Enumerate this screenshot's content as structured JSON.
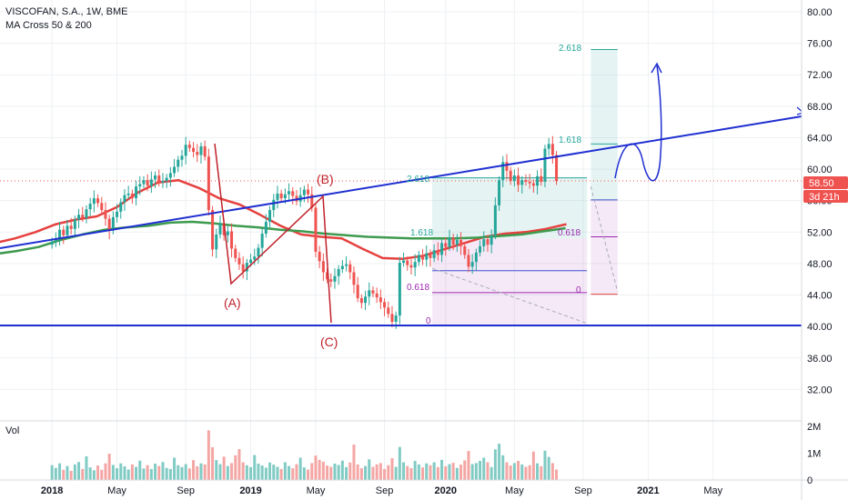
{
  "header": {
    "title": "VISCOFAN, S.A., 1W, BME",
    "indicator": "MA Cross 50 & 200"
  },
  "volume_label": "Vol",
  "colors": {
    "up": "#26a69a",
    "down": "#ef5350",
    "ma50": "#e5413f",
    "ma200": "#3d9a4e",
    "trendline": "#1f2fd1",
    "price_badge": "#ef5350"
  },
  "price_badge": {
    "price": "58.50",
    "countdown": "3d 21h"
  },
  "fib_labels": {
    "a_2618": "2.618",
    "a_1618": "1.618",
    "a_0618": "0.618",
    "a_0": "0",
    "b_2618": "2.618",
    "b_1618": "1.618",
    "b_0618": "0.618",
    "b_0": "0"
  },
  "wave_labels": {
    "a": "(A)",
    "b": "(B)",
    "c": "(C)"
  },
  "chart_data": {
    "type": "candlestick",
    "title": "VISCOFAN, S.A., 1W, BME",
    "price_axis": {
      "range": [
        28,
        81.5
      ],
      "ticks": [
        "32.00",
        "36.00",
        "40.00",
        "44.00",
        "48.00",
        "52.00",
        "56.00",
        "60.00",
        "64.00",
        "68.00",
        "72.00",
        "76.00",
        "80.00"
      ]
    },
    "volume_axis": {
      "range": [
        0,
        2.2
      ],
      "ticks": [
        "0",
        "1M",
        "2M"
      ]
    },
    "time_axis": {
      "labels": [
        "2018",
        "May",
        "Sep",
        "2019",
        "May",
        "Sep",
        "2020",
        "May",
        "Sep",
        "2021",
        "May"
      ],
      "label_weeks": [
        0,
        17,
        35,
        52,
        69,
        87,
        103,
        121,
        139,
        156,
        173
      ]
    },
    "series": [
      {
        "name": "Price",
        "close": [
          50.8,
          51.2,
          52.3,
          51.6,
          52.8,
          52.4,
          53.6,
          54.2,
          53.8,
          54.9,
          55.6,
          56.3,
          55.7,
          54.8,
          53.7,
          52.2,
          53.9,
          54.6,
          55.8,
          56.7,
          56.9,
          56.3,
          57.8,
          58.1,
          58.6,
          57.9,
          58.7,
          59.2,
          58.3,
          58.5,
          58.9,
          59.5,
          60.3,
          61.2,
          61.7,
          63.1,
          62.7,
          62.2,
          61.8,
          62.9,
          61.6,
          54.8,
          49.8,
          51.7,
          53.1,
          51.6,
          52.1,
          49.9,
          48.7,
          47.9,
          47.0,
          48.1,
          48.5,
          48.9,
          50.0,
          51.8,
          53.3,
          54.8,
          56.1,
          56.9,
          56.3,
          56.8,
          57.2,
          56.6,
          55.9,
          56.7,
          57.4,
          56.8,
          55.1,
          49.5,
          48.3,
          46.9,
          46.0,
          45.7,
          46.4,
          47.3,
          47.7,
          47.9,
          46.9,
          45.3,
          43.6,
          43.0,
          43.8,
          44.6,
          44.2,
          43.7,
          43.1,
          42.4,
          41.6,
          40.6,
          41.4,
          48.1,
          48.4,
          47.8,
          47.5,
          48.2,
          49.1,
          48.5,
          49.3,
          48.7,
          49.7,
          49.1,
          50.6,
          50.1,
          51.3,
          50.4,
          51.0,
          50.2,
          49.1,
          47.6,
          48.2,
          49.4,
          50.2,
          51.1,
          50.4,
          51.6,
          55.4,
          58.6,
          60.9,
          59.8,
          58.5,
          59.2,
          58.0,
          58.6,
          58.4,
          58.2,
          57.9,
          59.1,
          58.4,
          62.6,
          63.2,
          61.8,
          58.5
        ],
        "volume_m": [
          0.55,
          0.45,
          0.62,
          0.38,
          0.52,
          0.34,
          0.58,
          0.67,
          0.41,
          0.88,
          0.47,
          0.36,
          0.54,
          0.38,
          0.62,
          0.98,
          0.56,
          0.44,
          0.62,
          0.51,
          0.39,
          0.58,
          0.49,
          0.72,
          0.43,
          0.55,
          0.41,
          0.61,
          0.52,
          0.67,
          0.45,
          0.41,
          0.83,
          0.55,
          0.48,
          0.59,
          0.43,
          0.74,
          0.51,
          0.62,
          0.58,
          1.85,
          1.22,
          0.74,
          0.59,
          0.87,
          0.52,
          0.63,
          0.92,
          1.15,
          0.66,
          0.55,
          0.48,
          0.93,
          0.61,
          0.54,
          0.46,
          0.65,
          0.57,
          0.49,
          0.41,
          0.66,
          0.52,
          0.44,
          0.59,
          0.83,
          0.47,
          0.39,
          0.63,
          0.91,
          0.75,
          0.68,
          0.54,
          0.49,
          0.61,
          0.56,
          0.72,
          0.48,
          0.65,
          1.32,
          0.58,
          0.44,
          0.52,
          0.77,
          0.49,
          0.58,
          0.63,
          0.41,
          0.55,
          0.81,
          0.49,
          1.23,
          0.66,
          0.52,
          0.44,
          0.71,
          0.58,
          0.47,
          0.62,
          0.55,
          0.66,
          0.48,
          0.75,
          0.51,
          0.59,
          0.64,
          0.45,
          0.57,
          0.73,
          1.08,
          0.59,
          0.63,
          0.71,
          0.83,
          0.66,
          0.48,
          1.14,
          1.35,
          0.92,
          0.66,
          0.54,
          0.63,
          0.71,
          0.58,
          0.49,
          0.55,
          1.06,
          0.62,
          0.51,
          1.09,
          0.86,
          0.63,
          0.39
        ]
      },
      {
        "name": "MA 50",
        "from_week": 0,
        "values": [
          50.6,
          51.2,
          52.0,
          53.0,
          53.6,
          54.0,
          55.2,
          57.0,
          58.3,
          58.6,
          57.6,
          56.3,
          55.5,
          54.2,
          52.8,
          51.7,
          51.4,
          51.2,
          49.9,
          48.7,
          48.6,
          49.0,
          49.8,
          50.6,
          51.4,
          51.8,
          52.0,
          52.4,
          53.0
        ]
      },
      {
        "name": "MA 200",
        "from_week": 0,
        "values": [
          49.2,
          49.6,
          50.1,
          51.0,
          51.7,
          52.3,
          52.6,
          52.8,
          53.2,
          53.3,
          53.1,
          52.8,
          52.6,
          52.3,
          52.1,
          51.8,
          51.6,
          51.4,
          51.3,
          51.2,
          51.2,
          51.2,
          51.3,
          51.5,
          51.7,
          52.1,
          52.5
        ]
      }
    ]
  }
}
